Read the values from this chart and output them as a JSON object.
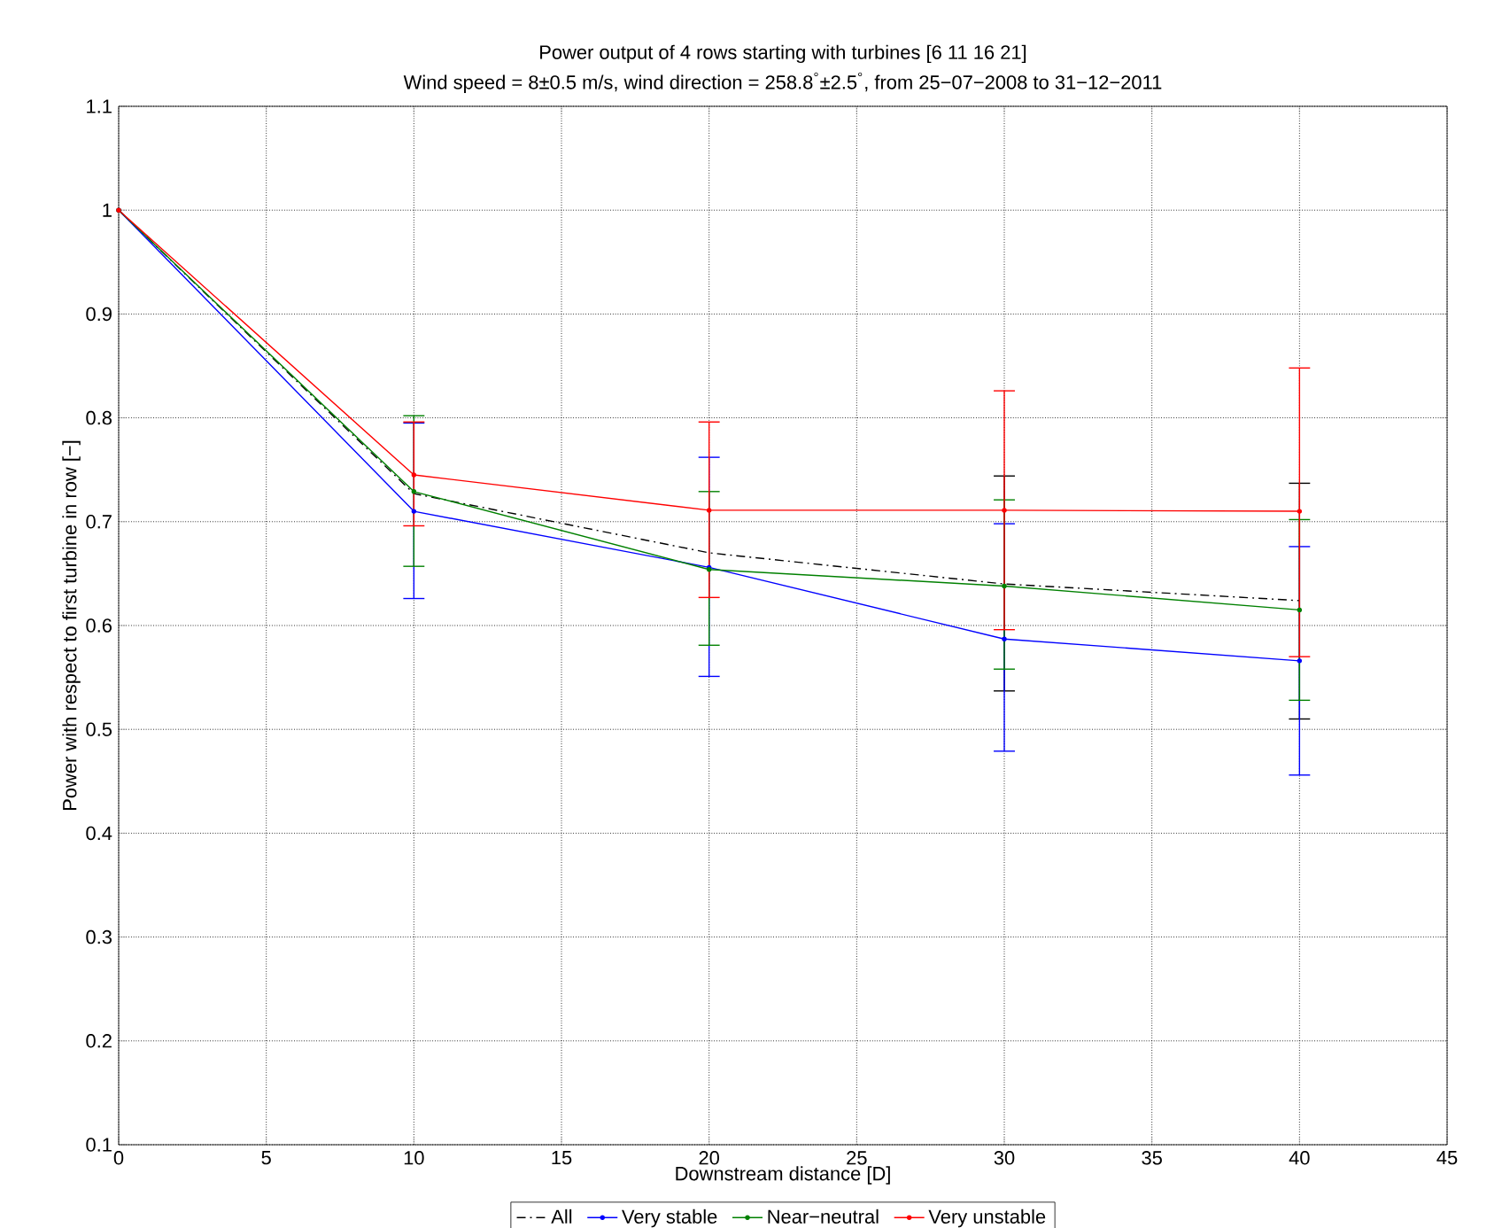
{
  "chart_data": {
    "type": "line",
    "title": "Power output of 4 rows starting with turbines [6 11 16 21]",
    "subtitle": "Wind speed = 8±0.5 m/s, wind direction = 258.8$^{°}$±2.5$^{°}$, from 25−07−2008 to 31−12−2011",
    "xlabel": "Downstream distance [D]",
    "ylabel": "Power with respect to first turbine in row [−]",
    "x": [
      0,
      10,
      20,
      30,
      40
    ],
    "series": [
      {
        "name": "All",
        "color": "#000000",
        "line_style": "dashdot",
        "marker": "none",
        "values": [
          1,
          0.727,
          0.67,
          0.64,
          0.624
        ],
        "errors": [
          null,
          null,
          null,
          [
            0.537,
            0.744
          ],
          [
            0.51,
            0.737
          ]
        ]
      },
      {
        "name": "Very stable",
        "color": "#0000ff",
        "values": [
          1,
          0.71,
          0.656,
          0.587,
          0.566
        ],
        "errors": [
          null,
          [
            0.626,
            0.795
          ],
          [
            0.551,
            0.762
          ],
          [
            0.479,
            0.698
          ],
          [
            0.456,
            0.676
          ]
        ]
      },
      {
        "name": "Near−neutral",
        "color": "#008000",
        "values": [
          1,
          0.729,
          0.654,
          0.638,
          0.615
        ],
        "errors": [
          null,
          [
            0.657,
            0.802
          ],
          [
            0.581,
            0.729
          ],
          [
            0.558,
            0.721
          ],
          [
            0.528,
            0.702
          ]
        ]
      },
      {
        "name": "Very unstable",
        "color": "#ff0000",
        "values": [
          1,
          0.745,
          0.711,
          0.711,
          0.71
        ],
        "errors": [
          null,
          [
            0.696,
            0.796
          ],
          [
            0.627,
            0.796
          ],
          [
            0.596,
            0.826
          ],
          [
            0.57,
            0.848
          ]
        ]
      }
    ],
    "xlim": [
      0,
      45
    ],
    "xticks": [
      0,
      5,
      10,
      15,
      20,
      25,
      30,
      35,
      40,
      45
    ],
    "ylim": [
      0.1,
      1.1
    ],
    "yticks": [
      0.1,
      0.2,
      0.3,
      0.4,
      0.5,
      0.6,
      0.7,
      0.8,
      0.9,
      1,
      1.1
    ],
    "grid": true,
    "legend": "bottom",
    "marker": "circle",
    "line_style": "solid"
  }
}
